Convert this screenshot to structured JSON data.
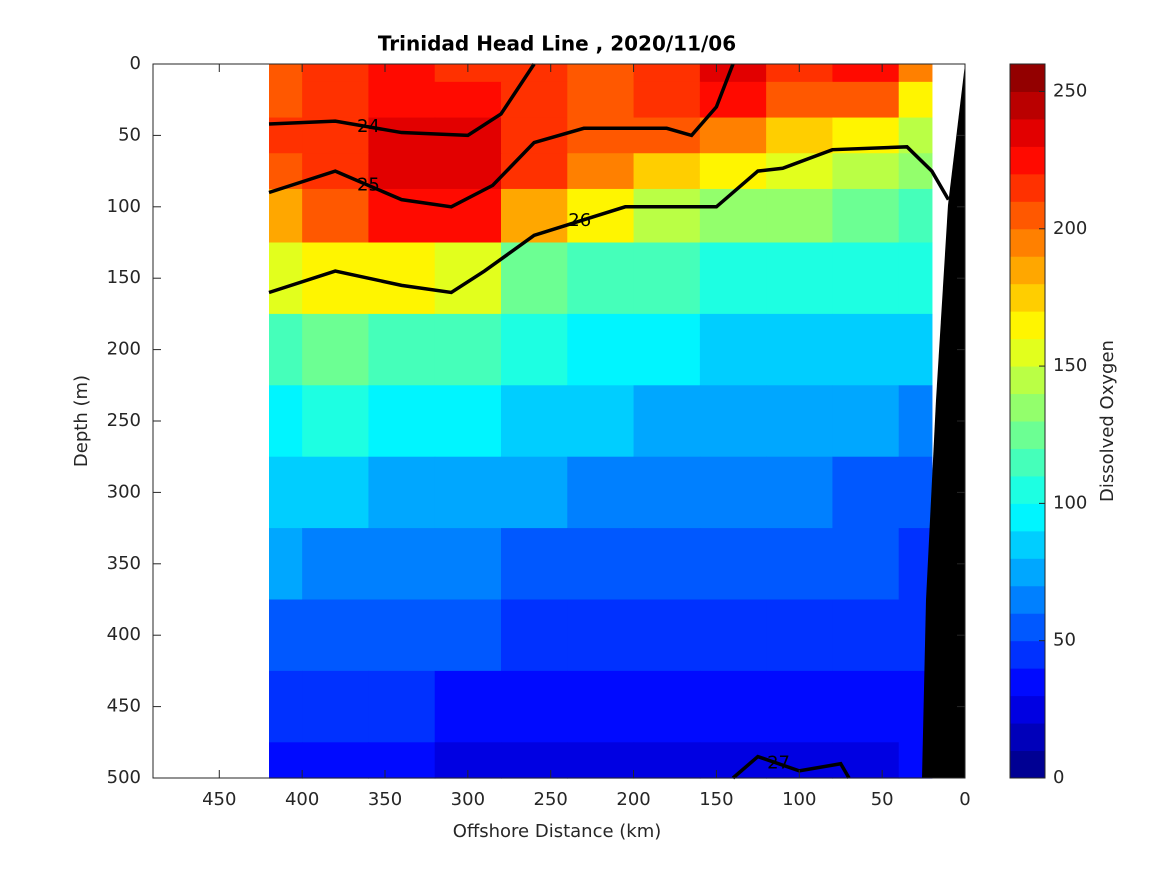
{
  "chart_data": {
    "type": "contour",
    "title": "Trinidad Head Line , 2020/11/06",
    "xlabel": "Offshore Distance (km)",
    "ylabel": "Depth (m)",
    "colorbar_label": "Dissolved Oxygen",
    "xlim": [
      490,
      0
    ],
    "xticks": [
      450,
      400,
      350,
      300,
      250,
      200,
      150,
      100,
      50,
      0
    ],
    "ylim": [
      0,
      500
    ],
    "yticks": [
      0,
      50,
      100,
      150,
      200,
      250,
      300,
      350,
      400,
      450,
      500
    ],
    "y_reversed": true,
    "colormap": "jet",
    "clim": [
      0,
      260
    ],
    "cticks": [
      0,
      50,
      100,
      150,
      200,
      250
    ],
    "clevels": [
      0,
      10,
      20,
      30,
      40,
      50,
      60,
      70,
      80,
      90,
      100,
      110,
      120,
      130,
      140,
      150,
      160,
      170,
      180,
      190,
      200,
      210,
      220,
      230,
      240,
      250,
      260
    ],
    "x": [
      420,
      380,
      340,
      300,
      260,
      220,
      180,
      140,
      100,
      60,
      20
    ],
    "y": [
      0,
      25,
      50,
      75,
      100,
      150,
      200,
      250,
      300,
      350,
      400,
      450,
      500
    ],
    "z": [
      [
        205,
        210,
        220,
        215,
        215,
        205,
        210,
        230,
        215,
        225,
        190
      ],
      [
        205,
        210,
        225,
        225,
        215,
        205,
        215,
        220,
        200,
        200,
        165
      ],
      [
        210,
        215,
        230,
        230,
        215,
        205,
        200,
        190,
        175,
        165,
        140
      ],
      [
        205,
        210,
        230,
        235,
        210,
        190,
        175,
        160,
        150,
        145,
        130
      ],
      [
        185,
        200,
        220,
        225,
        185,
        160,
        145,
        135,
        130,
        125,
        115
      ],
      [
        155,
        160,
        165,
        150,
        125,
        115,
        110,
        105,
        105,
        100,
        100
      ],
      [
        115,
        120,
        115,
        110,
        100,
        95,
        90,
        85,
        85,
        85,
        80
      ],
      [
        95,
        100,
        95,
        95,
        85,
        80,
        75,
        70,
        70,
        70,
        65
      ],
      [
        80,
        80,
        78,
        78,
        70,
        68,
        63,
        62,
        60,
        58,
        55
      ],
      [
        70,
        68,
        68,
        63,
        58,
        55,
        52,
        50,
        50,
        50,
        48
      ],
      [
        55,
        55,
        58,
        50,
        48,
        45,
        42,
        42,
        42,
        45,
        45
      ],
      [
        40,
        42,
        44,
        38,
        35,
        35,
        30,
        32,
        32,
        35,
        38
      ],
      [
        30,
        32,
        30,
        28,
        25,
        25,
        22,
        22,
        22,
        25,
        30
      ]
    ],
    "contours": [
      {
        "level": 24,
        "x": [
          420,
          380,
          340,
          300,
          280,
          260
        ],
        "y": [
          42,
          40,
          48,
          50,
          35,
          0
        ]
      },
      {
        "level": 25,
        "x": [
          420,
          380,
          340,
          310,
          285,
          260,
          230,
          180,
          165,
          150,
          140
        ],
        "y": [
          90,
          75,
          95,
          100,
          85,
          55,
          45,
          45,
          50,
          30,
          0
        ]
      },
      {
        "level": 26,
        "x": [
          420,
          380,
          340,
          310,
          290,
          260,
          205,
          150,
          125,
          110,
          80,
          35,
          20,
          10
        ],
        "y": [
          160,
          145,
          155,
          160,
          145,
          120,
          100,
          100,
          75,
          73,
          60,
          58,
          75,
          95
        ]
      },
      {
        "level": 27,
        "x": [
          140,
          125,
          100,
          75,
          70
        ],
        "y": [
          500,
          485,
          495,
          490,
          500
        ]
      }
    ]
  }
}
